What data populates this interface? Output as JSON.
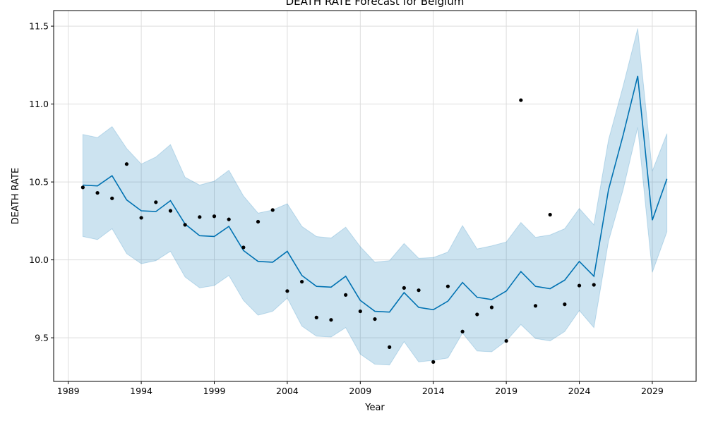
{
  "chart_data": {
    "type": "line",
    "title": "DEATH RATE Forecast for Belgium",
    "xlabel": "Year",
    "ylabel": "DEATH RATE",
    "xlim": [
      1988.0,
      2032.0
    ],
    "ylim": [
      9.22,
      11.6
    ],
    "grid": true,
    "x_ticks": [
      1989,
      1994,
      1999,
      2004,
      2009,
      2014,
      2019,
      2024,
      2029
    ],
    "y_ticks": [
      9.5,
      10.0,
      10.5,
      11.0,
      11.5
    ],
    "y_tick_labels": [
      "9.5",
      "10.0",
      "10.5",
      "11.0",
      "11.5"
    ],
    "colors": {
      "forecast": "#0072B2",
      "interval": "#0072B2",
      "observed": "#000000",
      "grid": "#dddddd"
    },
    "forecast": {
      "x": [
        1990,
        1991,
        1992,
        1993,
        1994,
        1995,
        1996,
        1997,
        1998,
        1999,
        2000,
        2001,
        2002,
        2003,
        2004,
        2005,
        2006,
        2007,
        2008,
        2009,
        2010,
        2011,
        2012,
        2013,
        2014,
        2015,
        2016,
        2017,
        2018,
        2019,
        2020,
        2021,
        2022,
        2023,
        2024,
        2025,
        2026,
        2027,
        2028,
        2029,
        2030
      ],
      "yhat": [
        10.48,
        10.475,
        10.54,
        10.385,
        10.315,
        10.31,
        10.38,
        10.23,
        10.155,
        10.15,
        10.215,
        10.06,
        9.99,
        9.985,
        10.055,
        9.9,
        9.83,
        9.825,
        9.895,
        9.74,
        9.67,
        9.665,
        9.79,
        9.695,
        9.68,
        9.735,
        9.855,
        9.76,
        9.745,
        9.8,
        9.925,
        9.83,
        9.815,
        9.87,
        9.99,
        9.895,
        10.45,
        10.8,
        11.18,
        10.255,
        10.52
      ],
      "lower": [
        10.15,
        10.13,
        10.2,
        10.04,
        9.975,
        9.995,
        10.055,
        9.89,
        9.82,
        9.835,
        9.9,
        9.74,
        9.645,
        9.67,
        9.755,
        9.575,
        9.51,
        9.505,
        9.565,
        9.395,
        9.33,
        9.325,
        9.475,
        9.345,
        9.355,
        9.37,
        9.53,
        9.415,
        9.41,
        9.48,
        9.585,
        9.495,
        9.48,
        9.54,
        9.675,
        9.565,
        10.12,
        10.45,
        10.85,
        9.92,
        10.18
      ],
      "upper": [
        10.805,
        10.785,
        10.855,
        10.715,
        10.615,
        10.66,
        10.74,
        10.53,
        10.48,
        10.505,
        10.575,
        10.41,
        10.3,
        10.32,
        10.36,
        10.215,
        10.15,
        10.14,
        10.21,
        10.085,
        9.985,
        9.995,
        10.105,
        10.01,
        10.015,
        10.05,
        10.22,
        10.07,
        10.09,
        10.115,
        10.24,
        10.145,
        10.16,
        10.2,
        10.33,
        10.225,
        10.77,
        11.115,
        11.485,
        10.57,
        10.81
      ]
    },
    "observed": {
      "x": [
        1990,
        1991,
        1992,
        1993,
        1994,
        1995,
        1996,
        1997,
        1998,
        1999,
        2000,
        2001,
        2002,
        2003,
        2004,
        2005,
        2006,
        2007,
        2008,
        2009,
        2010,
        2011,
        2012,
        2013,
        2014,
        2015,
        2016,
        2017,
        2018,
        2019,
        2020,
        2021,
        2022,
        2023,
        2024,
        2025
      ],
      "y": [
        10.465,
        10.43,
        10.395,
        10.615,
        10.27,
        10.37,
        10.315,
        10.225,
        10.275,
        10.28,
        10.26,
        10.08,
        10.245,
        10.32,
        9.8,
        9.86,
        9.63,
        9.615,
        9.775,
        9.67,
        9.62,
        9.44,
        9.82,
        9.805,
        9.345,
        9.83,
        9.54,
        9.65,
        9.695,
        9.48,
        11.025,
        9.705,
        10.29,
        9.715,
        9.835,
        9.84
      ]
    }
  }
}
